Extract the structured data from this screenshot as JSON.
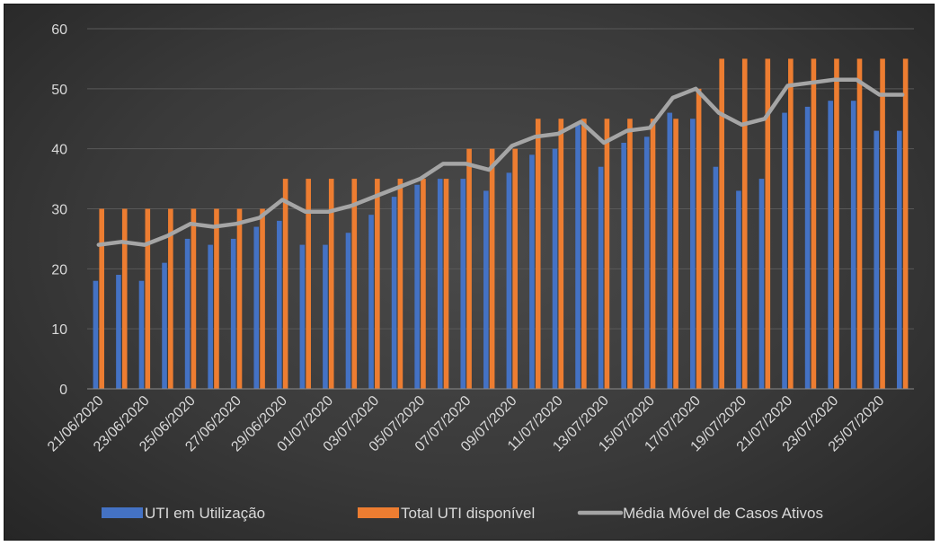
{
  "chart_data": {
    "type": "bar",
    "title": "",
    "xlabel": "",
    "ylabel": "",
    "ylim": [
      0,
      60
    ],
    "yticks": [
      0,
      10,
      20,
      30,
      40,
      50,
      60
    ],
    "grid": true,
    "legend_position": "bottom",
    "categories": [
      "21/06/2020",
      "22/06/2020",
      "23/06/2020",
      "24/06/2020",
      "25/06/2020",
      "26/06/2020",
      "27/06/2020",
      "28/06/2020",
      "29/06/2020",
      "30/06/2020",
      "01/07/2020",
      "02/07/2020",
      "03/07/2020",
      "04/07/2020",
      "05/07/2020",
      "06/07/2020",
      "07/07/2020",
      "08/07/2020",
      "09/07/2020",
      "10/07/2020",
      "11/07/2020",
      "12/07/2020",
      "13/07/2020",
      "14/07/2020",
      "15/07/2020",
      "16/07/2020",
      "17/07/2020",
      "18/07/2020",
      "19/07/2020",
      "20/07/2020",
      "21/07/2020",
      "22/07/2020",
      "23/07/2020",
      "24/07/2020",
      "25/07/2020",
      "26/07/2020"
    ],
    "category_labels_shown": [
      "21/06/2020",
      "23/06/2020",
      "25/06/2020",
      "27/06/2020",
      "29/06/2020",
      "01/07/2020",
      "03/07/2020",
      "05/07/2020",
      "07/07/2020",
      "09/07/2020",
      "11/07/2020",
      "13/07/2020",
      "15/07/2020",
      "17/07/2020",
      "19/07/2020",
      "21/07/2020",
      "23/07/2020",
      "25/07/2020"
    ],
    "series": [
      {
        "name": "UTI em Utilização",
        "kind": "bar",
        "color": "#4472c4",
        "values": [
          18,
          19,
          18,
          21,
          25,
          24,
          25,
          27,
          28,
          24,
          24,
          26,
          29,
          32,
          34,
          35,
          35,
          33,
          36,
          39,
          40,
          44,
          37,
          41,
          42,
          46,
          45,
          37,
          33,
          35,
          46,
          47,
          48,
          48,
          43,
          43
        ]
      },
      {
        "name": "Total UTI disponível",
        "kind": "bar",
        "color": "#ed7d31",
        "values": [
          30,
          30,
          30,
          30,
          30,
          30,
          30,
          30,
          35,
          35,
          35,
          35,
          35,
          35,
          35,
          35,
          40,
          40,
          40,
          45,
          45,
          45,
          45,
          45,
          45,
          45,
          50,
          55,
          55,
          55,
          55,
          55,
          55,
          55,
          55,
          55
        ]
      },
      {
        "name": "Média Móvel de Casos Ativos",
        "kind": "line",
        "color": "#a5a5a5",
        "values": [
          24,
          24.5,
          24,
          25.5,
          27.5,
          27,
          27.5,
          28.5,
          31.5,
          29.5,
          29.5,
          30.5,
          32,
          33.5,
          35,
          37.5,
          37.5,
          36.5,
          40.5,
          42,
          42.5,
          44.5,
          41,
          43,
          43.5,
          48.5,
          50,
          46,
          44,
          45,
          50.5,
          51,
          51.5,
          51.5,
          49,
          49
        ]
      }
    ]
  }
}
